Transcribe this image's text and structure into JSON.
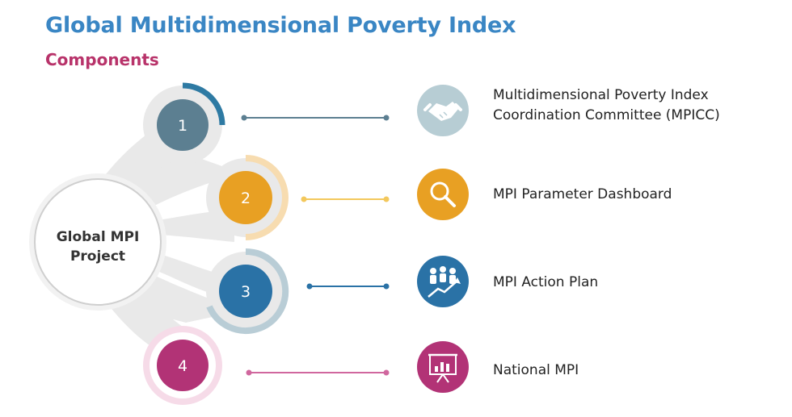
{
  "header": {
    "title": "Global Multidimensional Poverty Index",
    "subtitle": "Components"
  },
  "center": {
    "line1": "Global MPI",
    "line2": "Project"
  },
  "components": [
    {
      "number": "1",
      "label_line1": "Multidimensional Poverty Index",
      "label_line2": "Coordination Committee (MPICC)",
      "icon": "handshake-icon",
      "color": "#5c7f91",
      "ring_color": "#2e7aa3"
    },
    {
      "number": "2",
      "label_line1": "MPI Parameter Dashboard",
      "label_line2": "",
      "icon": "magnifier-icon",
      "color": "#e8a023",
      "ring_color": "#f7dcb0"
    },
    {
      "number": "3",
      "label_line1": "MPI Action Plan",
      "label_line2": "",
      "icon": "growth-people-icon",
      "color": "#2a72a6",
      "ring_color": "#b9cdd6"
    },
    {
      "number": "4",
      "label_line1": "National MPI",
      "label_line2": "",
      "icon": "presentation-board-icon",
      "color": "#b23376",
      "ring_color": "#f6dbe8"
    }
  ]
}
